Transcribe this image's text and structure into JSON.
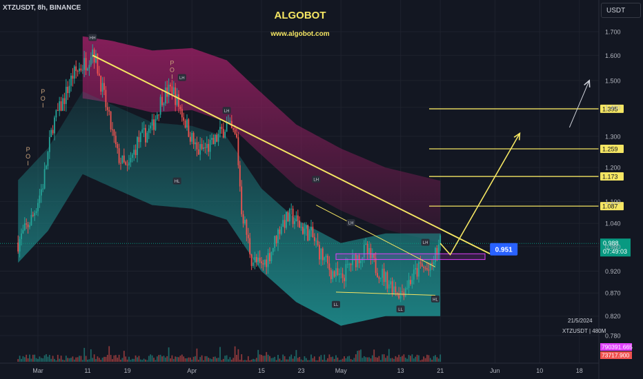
{
  "header": {
    "symbol_line": "XTZUSDT, 8h, BINANCE",
    "brand_title": "ALGOBOT",
    "brand_url": "www.algobot.com",
    "currency": "USDT"
  },
  "watermark": {
    "date": "21/5/2024",
    "symbol_info": "XTZUSDT | 480M"
  },
  "colors": {
    "background": "#131722",
    "candle_up": "#26a69a",
    "candle_down": "#ef5350",
    "upper_band": "#8b1e5c",
    "lower_band": "#1e8c8c",
    "trendline": "#f5e663",
    "target_level": "#f5e663",
    "zone": "#e040fb",
    "current_price": "#089981",
    "callout": "#2962ff"
  },
  "chart_data": {
    "type": "candlestick",
    "timeframe": "8h",
    "y_axis": {
      "scale": "log",
      "ylim": [
        0.775,
        1.77
      ],
      "ticks": [
        "1.700",
        "1.600",
        "1.500",
        "1.400",
        "1.300",
        "1.200",
        "1.100",
        "1.040",
        "0.980",
        "0.920",
        "0.870",
        "0.820",
        "0.780"
      ]
    },
    "x_axis": {
      "tick_labels": [
        "Mar",
        "11",
        "19",
        "Apr",
        "15",
        "23",
        "May",
        "13",
        "21",
        "Jun",
        "10",
        "18"
      ],
      "tick_dates": [
        "2024-03-01",
        "2024-03-11",
        "2024-03-19",
        "2024-04-01",
        "2024-04-15",
        "2024-04-23",
        "2024-05-01",
        "2024-05-13",
        "2024-05-21",
        "2024-06-01",
        "2024-06-10",
        "2024-06-18"
      ]
    },
    "price_path": [
      [
        "2024-02-26",
        0.99
      ],
      [
        "2024-02-29",
        1.06
      ],
      [
        "2024-03-02",
        1.15
      ],
      [
        "2024-03-04",
        1.34
      ],
      [
        "2024-03-06",
        1.42
      ],
      [
        "2024-03-08",
        1.52
      ],
      [
        "2024-03-11",
        1.58
      ],
      [
        "2024-03-12",
        1.63
      ],
      [
        "2024-03-13",
        1.55
      ],
      [
        "2024-03-15",
        1.38
      ],
      [
        "2024-03-17",
        1.24
      ],
      [
        "2024-03-19",
        1.19
      ],
      [
        "2024-03-21",
        1.28
      ],
      [
        "2024-03-24",
        1.33
      ],
      [
        "2024-03-26",
        1.44
      ],
      [
        "2024-03-28",
        1.47
      ],
      [
        "2024-03-30",
        1.38
      ],
      [
        "2024-04-02",
        1.25
      ],
      [
        "2024-04-05",
        1.27
      ],
      [
        "2024-04-08",
        1.34
      ],
      [
        "2024-04-10",
        1.29
      ],
      [
        "2024-04-11",
        1.08
      ],
      [
        "2024-04-13",
        0.95
      ],
      [
        "2024-04-15",
        0.93
      ],
      [
        "2024-04-17",
        0.97
      ],
      [
        "2024-04-19",
        1.04
      ],
      [
        "2024-04-21",
        1.06
      ],
      [
        "2024-04-23",
        1.03
      ],
      [
        "2024-04-25",
        1.01
      ],
      [
        "2024-04-27",
        0.96
      ],
      [
        "2024-04-29",
        0.92
      ],
      [
        "2024-05-01",
        0.9
      ],
      [
        "2024-05-03",
        0.94
      ],
      [
        "2024-05-06",
        0.97
      ],
      [
        "2024-05-08",
        0.93
      ],
      [
        "2024-05-11",
        0.89
      ],
      [
        "2024-05-13",
        0.87
      ],
      [
        "2024-05-15",
        0.9
      ],
      [
        "2024-05-17",
        0.93
      ],
      [
        "2024-05-19",
        0.92
      ],
      [
        "2024-05-20",
        0.96
      ],
      [
        "2024-05-21",
        0.988
      ]
    ],
    "upper_band_path": [
      [
        "2024-03-10",
        1.68
      ],
      [
        "2024-03-16",
        1.66
      ],
      [
        "2024-03-24",
        1.62
      ],
      [
        "2024-04-01",
        1.63
      ],
      [
        "2024-04-08",
        1.58
      ],
      [
        "2024-04-14",
        1.47
      ],
      [
        "2024-04-22",
        1.34
      ],
      [
        "2024-05-01",
        1.26
      ],
      [
        "2024-05-10",
        1.2
      ],
      [
        "2024-05-21",
        1.16
      ]
    ],
    "lower_band_path": [
      [
        "2024-02-26",
        0.94
      ],
      [
        "2024-03-03",
        1.02
      ],
      [
        "2024-03-10",
        1.18
      ],
      [
        "2024-03-16",
        1.14
      ],
      [
        "2024-03-24",
        1.09
      ],
      [
        "2024-04-01",
        1.08
      ],
      [
        "2024-04-08",
        1.05
      ],
      [
        "2024-04-15",
        0.92
      ],
      [
        "2024-04-22",
        0.85
      ],
      [
        "2024-05-01",
        0.8
      ],
      [
        "2024-05-10",
        0.82
      ],
      [
        "2024-05-21",
        0.82
      ]
    ],
    "trendlines": [
      {
        "from": [
          "2024-03-12",
          1.6
        ],
        "to": [
          "2024-05-31",
          0.962
        ],
        "style": "thick"
      },
      {
        "from": [
          "2024-04-26",
          1.09
        ],
        "to": [
          "2024-05-20",
          0.93
        ],
        "style": "thin"
      },
      {
        "from": [
          "2024-04-30",
          0.872
        ],
        "to": [
          "2024-05-20",
          0.865
        ],
        "style": "thin"
      }
    ],
    "zone": {
      "from": "2024-04-30",
      "to": "2024-05-30",
      "top": 0.962,
      "bottom": 0.948
    },
    "projection": [
      [
        "2024-05-21",
        0.988
      ],
      [
        "2024-05-23",
        0.96
      ],
      [
        "2024-06-06",
        1.31
      ]
    ],
    "annotation_arrow": [
      [
        "2024-06-16",
        1.33
      ],
      [
        "2024-06-20",
        1.5
      ]
    ],
    "target_levels": [
      {
        "value": 1.395,
        "label": "1.395"
      },
      {
        "value": 1.259,
        "label": "1.259"
      },
      {
        "value": 1.173,
        "label": "1.173"
      },
      {
        "value": 1.087,
        "label": "1.087"
      }
    ],
    "callout": {
      "label": "0.951",
      "date": "2024-05-31",
      "value": 0.951
    },
    "current_price": {
      "value": 0.988,
      "label": "0.988",
      "countdown": "07:49:03"
    },
    "volume_badges": [
      {
        "label": "790391.665",
        "color": "#e040fb"
      },
      {
        "label": "73717.900",
        "color": "#ef5350"
      }
    ],
    "swing_labels": [
      {
        "text": "HH",
        "date": "2024-03-12",
        "value": 1.64,
        "side": "above"
      },
      {
        "text": "LH",
        "date": "2024-03-30",
        "value": 1.48,
        "side": "above"
      },
      {
        "text": "LH",
        "date": "2024-04-08",
        "value": 1.36,
        "side": "above"
      },
      {
        "text": "HL",
        "date": "2024-03-29",
        "value": 1.18,
        "side": "below"
      },
      {
        "text": "LH",
        "date": "2024-04-26",
        "value": 1.14,
        "side": "above"
      },
      {
        "text": "LH",
        "date": "2024-05-03",
        "value": 1.02,
        "side": "above"
      },
      {
        "text": "LL",
        "date": "2024-04-30",
        "value": 0.86,
        "side": "below"
      },
      {
        "text": "LL",
        "date": "2024-05-13",
        "value": 0.85,
        "side": "below"
      },
      {
        "text": "LH",
        "date": "2024-05-18",
        "value": 0.97,
        "side": "above"
      },
      {
        "text": "HL",
        "date": "2024-05-20",
        "value": 0.872,
        "side": "below"
      }
    ],
    "poi_markers": [
      {
        "text": "POI",
        "date": "2024-02-28",
        "value": 1.25
      },
      {
        "text": "POI",
        "date": "2024-03-02",
        "value": 1.45
      },
      {
        "text": "POI",
        "date": "2024-03-28",
        "value": 1.56
      }
    ]
  }
}
